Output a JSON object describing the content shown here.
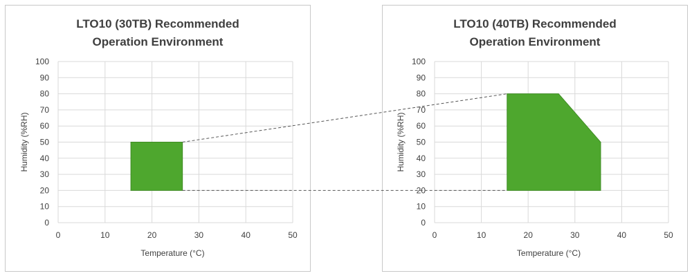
{
  "chart_data": [
    {
      "type": "area",
      "title_line1": "LTO10 (30TB) Recommended",
      "title_line2": "Operation Environment",
      "xlabel": "Temperature (°C)",
      "ylabel": "Humidity (%RH)",
      "xlim": [
        0,
        50
      ],
      "ylim": [
        0,
        100
      ],
      "xticks": [
        0,
        10,
        20,
        30,
        40,
        50
      ],
      "yticks": [
        0,
        10,
        20,
        30,
        40,
        50,
        60,
        70,
        80,
        90,
        100
      ],
      "grid": true,
      "fill_color": "#4ea72e",
      "region": [
        [
          15.5,
          20
        ],
        [
          26.5,
          20
        ],
        [
          26.5,
          50
        ],
        [
          15.5,
          50
        ]
      ]
    },
    {
      "type": "area",
      "title_line1": "LTO10 (40TB) Recommended",
      "title_line2": "Operation Environment",
      "xlabel": "Temperature (°C)",
      "ylabel": "Humidity (%RH)",
      "xlim": [
        0,
        50
      ],
      "ylim": [
        0,
        100
      ],
      "xticks": [
        0,
        10,
        20,
        30,
        40,
        50
      ],
      "yticks": [
        0,
        10,
        20,
        30,
        40,
        50,
        60,
        70,
        80,
        90,
        100
      ],
      "grid": true,
      "fill_color": "#4ea72e",
      "region": [
        [
          15.5,
          20
        ],
        [
          35.5,
          20
        ],
        [
          35.5,
          50
        ],
        [
          26.5,
          80
        ],
        [
          15.5,
          80
        ]
      ]
    }
  ],
  "connector_color": "#555555"
}
